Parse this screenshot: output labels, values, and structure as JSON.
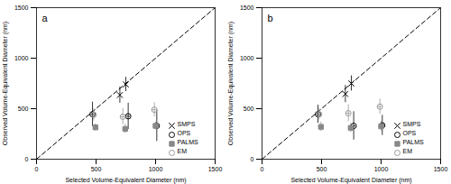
{
  "chart_data": [
    {
      "type": "scatter",
      "title": "a",
      "xlabel": "Selected Volume-Equivalent Diameter (nm)",
      "ylabel": "Observed Volume-Equivalent Diameter (nm)",
      "xlim": [
        0,
        1500
      ],
      "ylim": [
        0,
        1500
      ],
      "xticks": [
        0,
        500,
        1000,
        1500
      ],
      "yticks": [
        0,
        500,
        1000,
        1500
      ],
      "legend": "bottom-right",
      "series": [
        {
          "type": "line",
          "line_style": "dashed",
          "color": "black",
          "x": [
            0,
            1500
          ],
          "values": [
            0,
            1500
          ]
        },
        {
          "name": "SMPS",
          "color": "black",
          "marker": "x",
          "x": [
            700,
            750
          ],
          "values": [
            635,
            740
          ],
          "xerr": [
            0,
            0
          ],
          "yerr": [
            80,
            70
          ]
        },
        {
          "name": "OPS",
          "color": "black",
          "marker": "circle",
          "x": [
            470,
            770,
            1010
          ],
          "values": [
            445,
            425,
            330
          ],
          "xerr": [
            20,
            20,
            20
          ],
          "yerr": [
            120,
            130,
            155
          ]
        },
        {
          "name": "PALMS",
          "color": "#888888",
          "marker": "square",
          "x": [
            495,
            745,
            1000
          ],
          "values": [
            315,
            300,
            330
          ],
          "xerr": [
            20,
            20,
            20
          ],
          "yerr": [
            35,
            45,
            38
          ]
        },
        {
          "name": "EM",
          "color": "#999999",
          "marker": "circle",
          "x": [
            480,
            725,
            990
          ],
          "values": [
            440,
            420,
            490
          ],
          "xerr": [
            20,
            20,
            20
          ],
          "yerr": [
            60,
            80,
            70
          ]
        }
      ]
    },
    {
      "type": "scatter",
      "title": "b",
      "xlabel": "Selected Volume-Equivalent Diameter (nm)",
      "ylabel": "Observed Volume-Equivalent Diameter (nm)",
      "xlim": [
        0,
        1500
      ],
      "ylim": [
        0,
        1500
      ],
      "xticks": [
        0,
        500,
        1000,
        1500
      ],
      "yticks": [
        0,
        500,
        1000,
        1500
      ],
      "legend": "bottom-right",
      "series": [
        {
          "type": "line",
          "line_style": "dashed",
          "color": "black",
          "x": [
            0,
            1500
          ],
          "values": [
            0,
            1500
          ]
        },
        {
          "name": "SMPS",
          "color": "black",
          "marker": "x",
          "x": [
            700,
            750
          ],
          "values": [
            645,
            750
          ],
          "xerr": [
            0,
            0
          ],
          "yerr": [
            85,
            75
          ]
        },
        {
          "name": "OPS",
          "color": "black",
          "marker": "circle",
          "x": [
            470,
            770,
            1010
          ],
          "values": [
            445,
            330,
            335
          ],
          "xerr": [
            20,
            20,
            20
          ],
          "yerr": [
            90,
            140,
            100
          ]
        },
        {
          "name": "PALMS",
          "color": "#888888",
          "marker": "square",
          "x": [
            495,
            745,
            1000
          ],
          "values": [
            320,
            310,
            325
          ],
          "xerr": [
            20,
            20,
            20
          ],
          "yerr": [
            45,
            45,
            45
          ]
        },
        {
          "name": "EM",
          "color": "#999999",
          "marker": "circle",
          "x": [
            480,
            725,
            990
          ],
          "values": [
            445,
            455,
            520
          ],
          "xerr": [
            20,
            20,
            20
          ],
          "yerr": [
            55,
            85,
            75
          ]
        }
      ]
    }
  ]
}
